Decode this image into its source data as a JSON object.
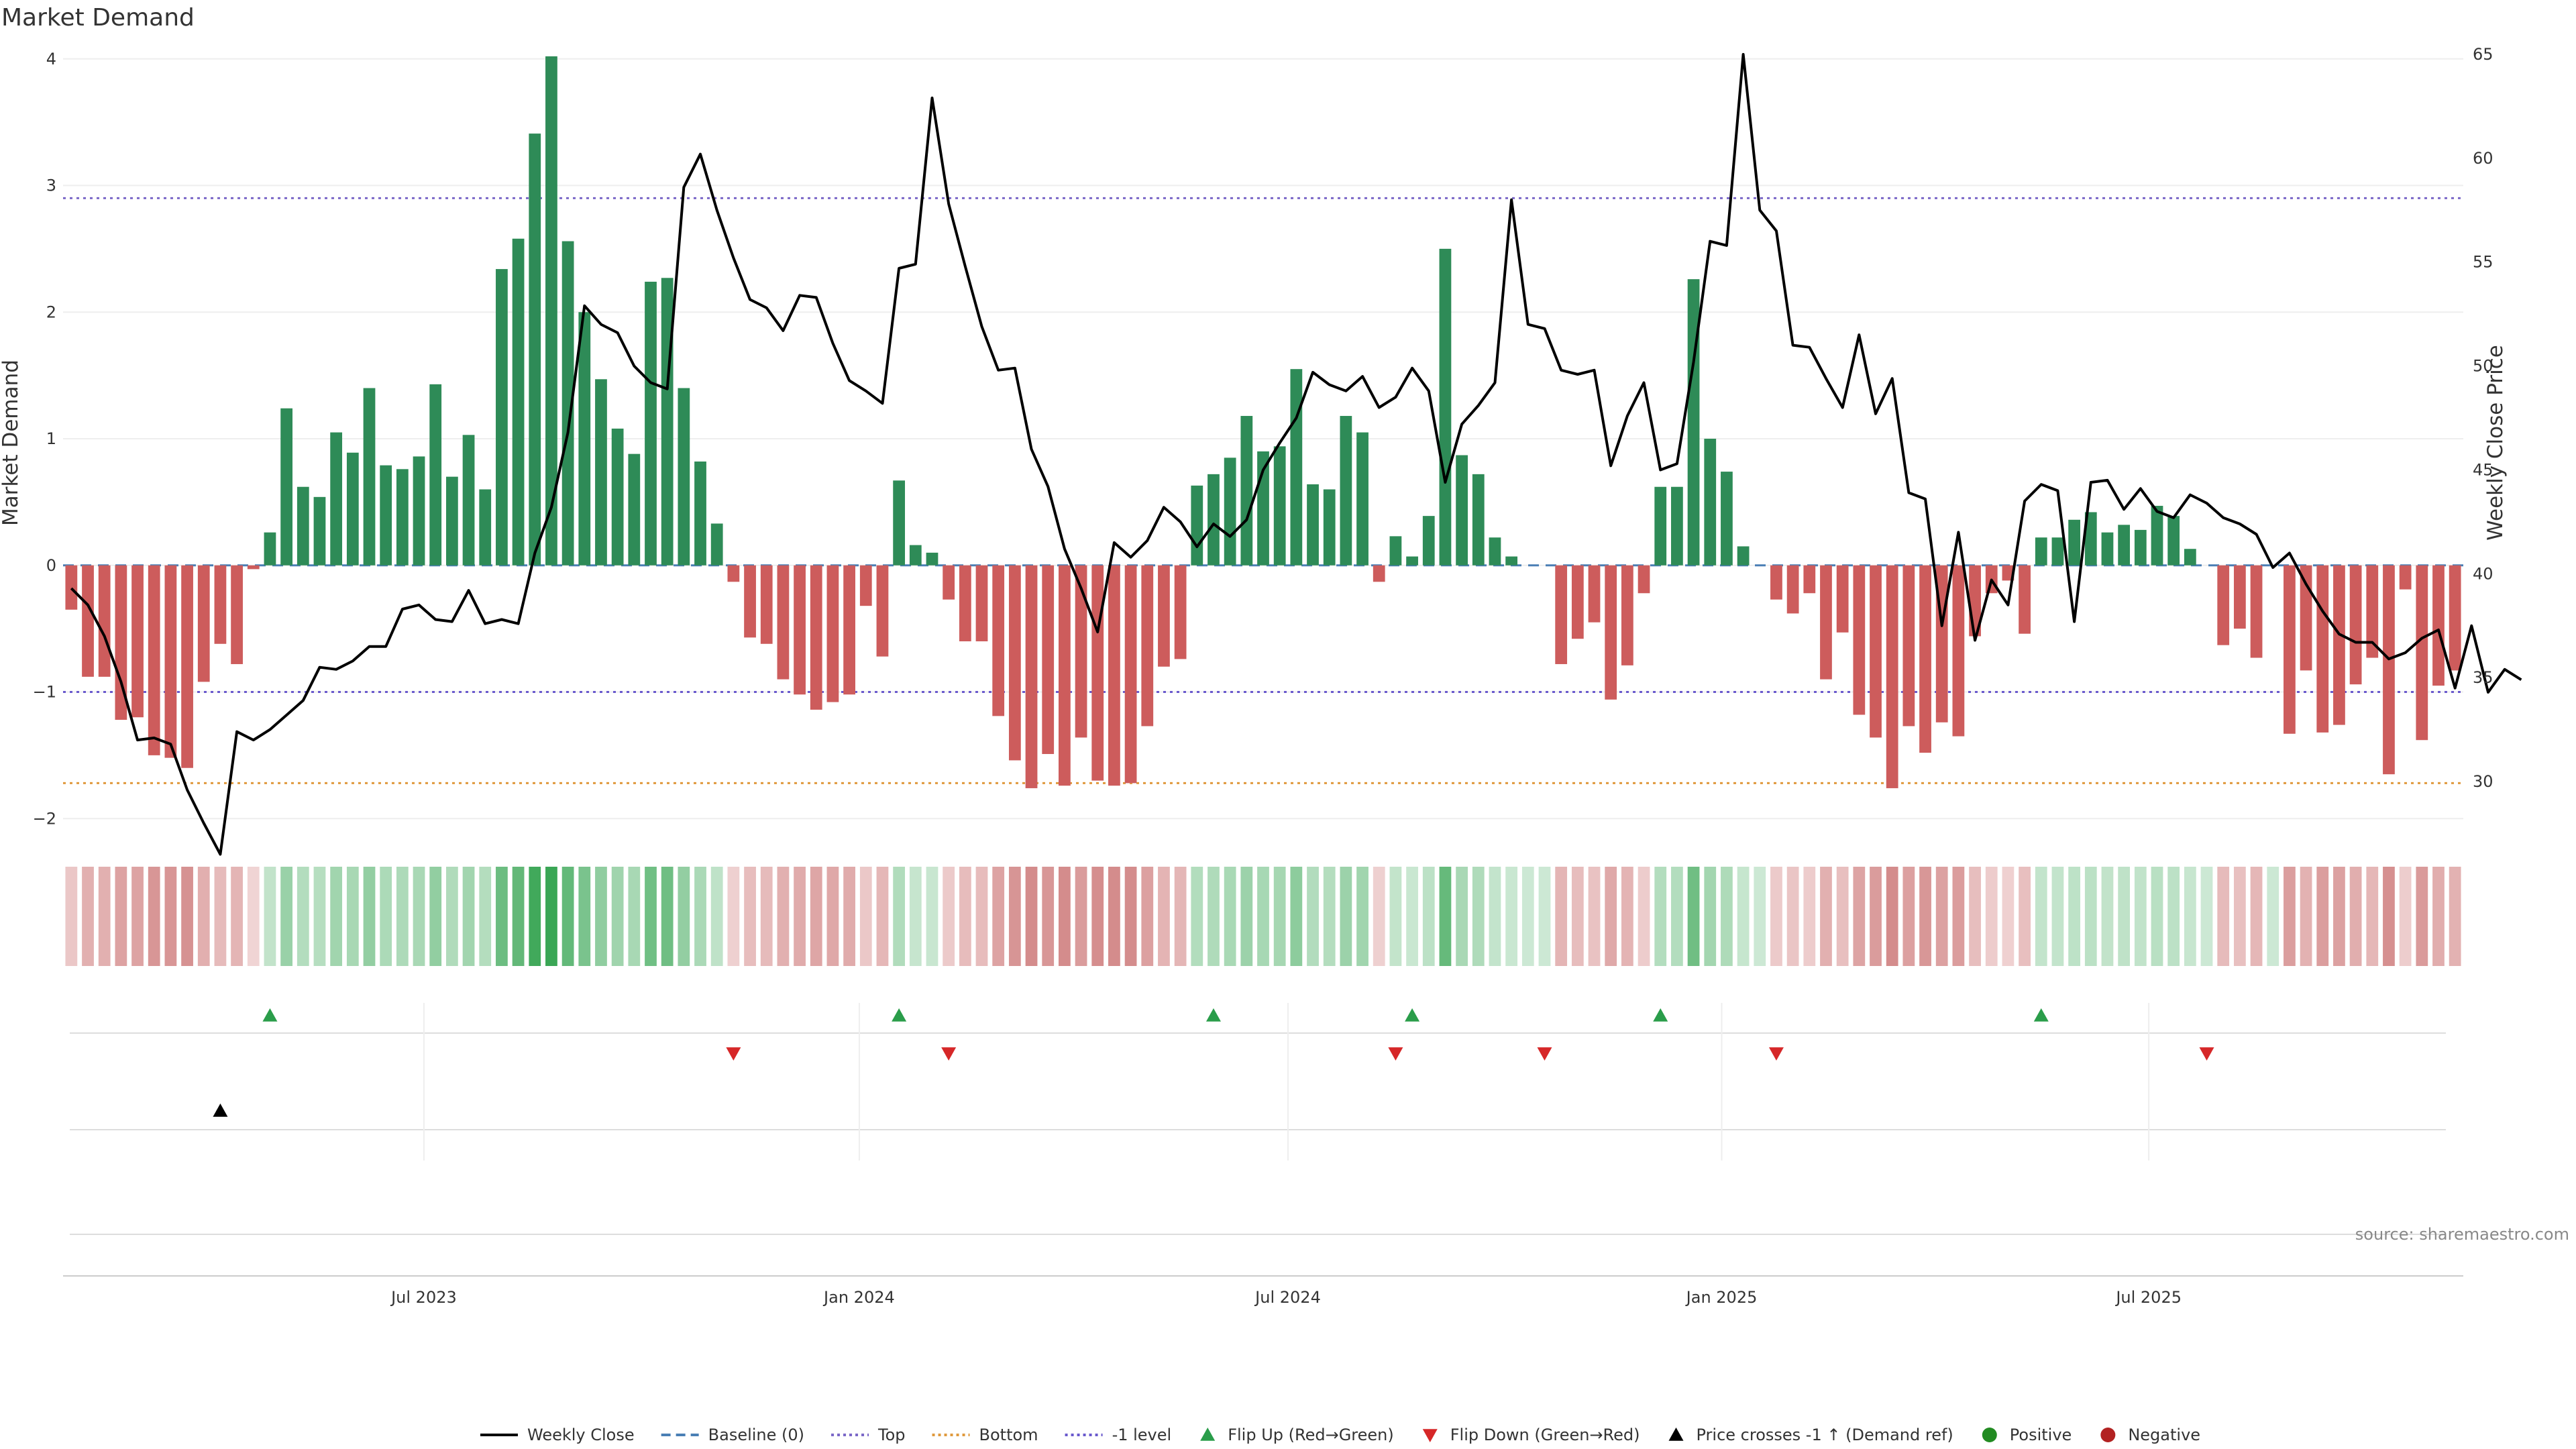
{
  "chart_data": {
    "type": "bar",
    "title": "Market Demand",
    "ylabel_left": "Market Demand",
    "ylabel_right": "Weekly Close Price",
    "source": "source: sharemaestro.com",
    "ylim_left": [
      -2.2,
      4.2
    ],
    "ylim_right": [
      27.0,
      66.0
    ],
    "yticks_left": [
      "4",
      "3",
      "2",
      "1",
      "0",
      "−1",
      "−2"
    ],
    "ytick_values_left": [
      4,
      3,
      2,
      1,
      0,
      -1,
      -2
    ],
    "yticks_right": [
      "65",
      "60",
      "55",
      "50",
      "45",
      "40",
      "35",
      "30"
    ],
    "ytick_values_right": [
      65,
      60,
      55,
      50,
      45,
      40,
      35,
      30
    ],
    "xticks": [
      "Jul 2023",
      "Jan 2024",
      "Jul 2024",
      "Jan 2025",
      "Jul 2025"
    ],
    "xtick_weeks": [
      21.3,
      47.6,
      73.5,
      99.7,
      125.5
    ],
    "reference_lines": {
      "baseline": 0,
      "top": 2.9,
      "bottom": -1.72,
      "minus_one": -1.0
    },
    "colors": {
      "positive": "#2e8b57",
      "negative": "#cd5c5c",
      "price": "#000000",
      "baseline": "#4a7fb5",
      "top": "#7b68c8",
      "bottom": "#e09a3e",
      "minus_one": "#6a5acd",
      "flip_up": "#2a9d4a",
      "flip_down": "#d62728",
      "cross": "#000000",
      "positive_dot": "#228b22",
      "negative_dot": "#b22222"
    },
    "series": [
      {
        "name": "Market Demand",
        "values": [
          -0.35,
          -0.88,
          -0.88,
          -1.22,
          -1.2,
          -1.5,
          -1.52,
          -1.6,
          -0.92,
          -0.62,
          -0.78,
          -0.03,
          0.26,
          1.24,
          0.62,
          0.54,
          1.05,
          0.89,
          1.4,
          0.79,
          0.76,
          0.86,
          1.43,
          0.7,
          1.03,
          0.6,
          2.34,
          2.58,
          3.41,
          4.02,
          2.56,
          2.0,
          1.47,
          1.08,
          0.88,
          2.24,
          2.27,
          1.4,
          0.82,
          0.33,
          -0.13,
          -0.57,
          -0.62,
          -0.9,
          -1.02,
          -1.14,
          -1.08,
          -1.02,
          -0.32,
          -0.72,
          0.67,
          0.16,
          0.1,
          -0.27,
          -0.6,
          -0.6,
          -1.19,
          -1.54,
          -1.76,
          -1.49,
          -1.74,
          -1.36,
          -1.7,
          -1.74,
          -1.72,
          -1.27,
          -0.8,
          -0.74,
          0.63,
          0.72,
          0.85,
          1.18,
          0.9,
          0.94,
          1.55,
          0.64,
          0.6,
          1.18,
          1.05,
          -0.13,
          0.23,
          0.07,
          0.39,
          2.5,
          0.87,
          0.72,
          0.22,
          0.07,
          0.0,
          0.0,
          -0.78,
          -0.58,
          -0.45,
          -1.06,
          -0.79,
          -0.22,
          0.62,
          0.62,
          2.26,
          1.0,
          0.74,
          0.15,
          0.0,
          -0.27,
          -0.38,
          -0.22,
          -0.9,
          -0.53,
          -1.18,
          -1.36,
          -1.76,
          -1.27,
          -1.48,
          -1.24,
          -1.35,
          -0.56,
          -0.22,
          -0.12,
          -0.54,
          0.22,
          0.22,
          0.36,
          0.42,
          0.26,
          0.32,
          0.28,
          0.47,
          0.39,
          0.13,
          0.0,
          -0.63,
          -0.5,
          -0.73,
          0.0,
          -1.33,
          -0.83,
          -1.32,
          -1.26,
          -0.94,
          -0.73,
          -1.65,
          -0.19,
          -1.38,
          -0.95,
          -0.83
        ]
      },
      {
        "name": "Weekly Close",
        "values": [
          39.3,
          38.5,
          37.0,
          34.8,
          32.0,
          32.1,
          31.8,
          29.6,
          28.0,
          26.5,
          32.4,
          32.0,
          32.5,
          33.2,
          33.9,
          35.5,
          35.4,
          35.8,
          36.5,
          36.5,
          38.3,
          38.5,
          37.8,
          37.7,
          39.2,
          37.6,
          37.8,
          37.6,
          41.0,
          43.2,
          46.8,
          52.9,
          52.0,
          51.6,
          50.0,
          49.2,
          48.9,
          58.6,
          60.2,
          57.5,
          55.2,
          53.2,
          52.8,
          51.7,
          53.4,
          53.3,
          51.1,
          49.3,
          48.8,
          48.2,
          54.7,
          54.9,
          62.9,
          57.8,
          54.8,
          51.9,
          49.8,
          49.9,
          46.0,
          44.2,
          41.2,
          39.3,
          37.2,
          41.5,
          40.8,
          41.6,
          43.2,
          42.5,
          41.3,
          42.4,
          41.8,
          42.6,
          45.0,
          46.3,
          47.5,
          49.7,
          49.1,
          48.8,
          49.5,
          48.0,
          48.5,
          49.9,
          48.8,
          44.4,
          47.2,
          48.1,
          49.2,
          58.0,
          52.0,
          51.8,
          49.8,
          49.6,
          49.8,
          45.2,
          47.6,
          49.2,
          45.0,
          45.3,
          50.2,
          56.0,
          55.8,
          65.0,
          57.5,
          56.5,
          51.0,
          50.9,
          49.4,
          48.0,
          51.5,
          47.7,
          49.4,
          43.9,
          43.6,
          37.5,
          42.0,
          36.8,
          39.7,
          38.5,
          43.5,
          44.3,
          44.0,
          37.7,
          44.4,
          44.5,
          43.1,
          44.1,
          43.0,
          42.7,
          43.8,
          43.4,
          42.7,
          42.4,
          41.9,
          40.3,
          41.0,
          39.5,
          38.2,
          37.1,
          36.7,
          36.7,
          35.9,
          36.2,
          36.9,
          37.3,
          34.5,
          37.5,
          34.3,
          35.4,
          34.9
        ]
      }
    ],
    "heat_band": "per-week intensity of Market Demand (green positive, red negative)",
    "flip_up_weeks": [
      12,
      50,
      69,
      81,
      96,
      119
    ],
    "flip_down_weeks": [
      40,
      53,
      80,
      89,
      103,
      129
    ],
    "price_cross_weeks": [
      9
    ],
    "legend": [
      {
        "label": "Weekly Close",
        "style": "line-solid",
        "color": "#000000"
      },
      {
        "label": "Baseline (0)",
        "style": "line-dash",
        "color": "#4a7fb5"
      },
      {
        "label": "Top",
        "style": "line-dot",
        "color": "#7b68c8"
      },
      {
        "label": "Bottom",
        "style": "line-dot",
        "color": "#e09a3e"
      },
      {
        "label": "-1 level",
        "style": "line-dot",
        "color": "#6a5acd"
      },
      {
        "label": "Flip Up (Red→Green)",
        "style": "tri-up",
        "color": "#2a9d4a"
      },
      {
        "label": "Flip Down (Green→Red)",
        "style": "tri-down",
        "color": "#d62728"
      },
      {
        "label": "Price crosses -1 ↑ (Demand ref)",
        "style": "tri-up",
        "color": "#000000"
      },
      {
        "label": "Positive",
        "style": "dot",
        "color": "#228b22"
      },
      {
        "label": "Negative",
        "style": "dot",
        "color": "#b22222"
      }
    ]
  }
}
